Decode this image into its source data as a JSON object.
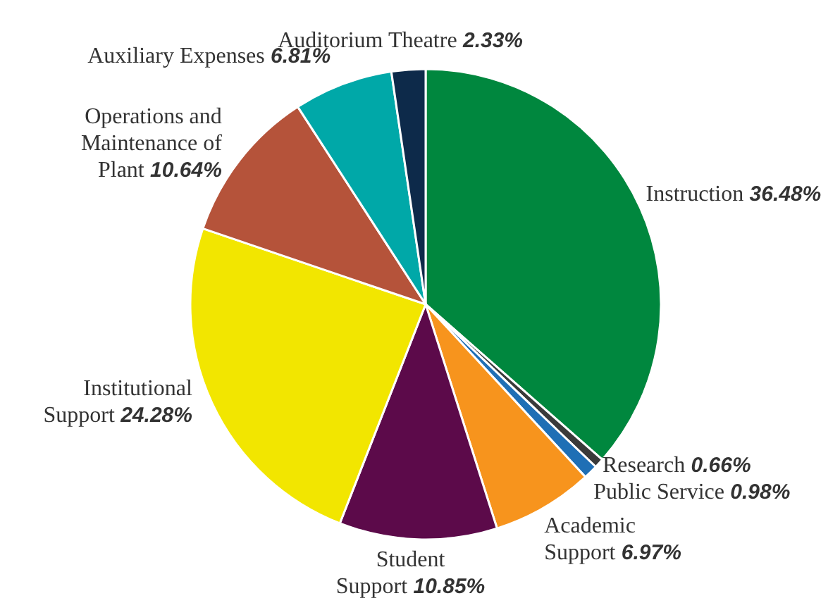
{
  "chart_data": {
    "type": "pie",
    "categories": [
      "Instruction",
      "Research",
      "Public Service",
      "Academic Support",
      "Student Support",
      "Institutional Support",
      "Operations and Maintenance of Plant",
      "Auxiliary Expenses",
      "Auditorium Theatre"
    ],
    "values": [
      36.48,
      0.66,
      0.98,
      6.97,
      10.85,
      24.28,
      10.64,
      6.81,
      2.33
    ],
    "value_labels": [
      "36.48%",
      "0.66%",
      "0.98%",
      "6.97%",
      "10.85%",
      "24.28%",
      "10.64%",
      "6.81%",
      "2.33%"
    ],
    "colors": [
      "#00873e",
      "#3a3a3a",
      "#1f6fb5",
      "#f7941d",
      "#5c0a4a",
      "#f2e600",
      "#b5533a",
      "#00a8a8",
      "#0d2a4a"
    ],
    "legend": false
  }
}
